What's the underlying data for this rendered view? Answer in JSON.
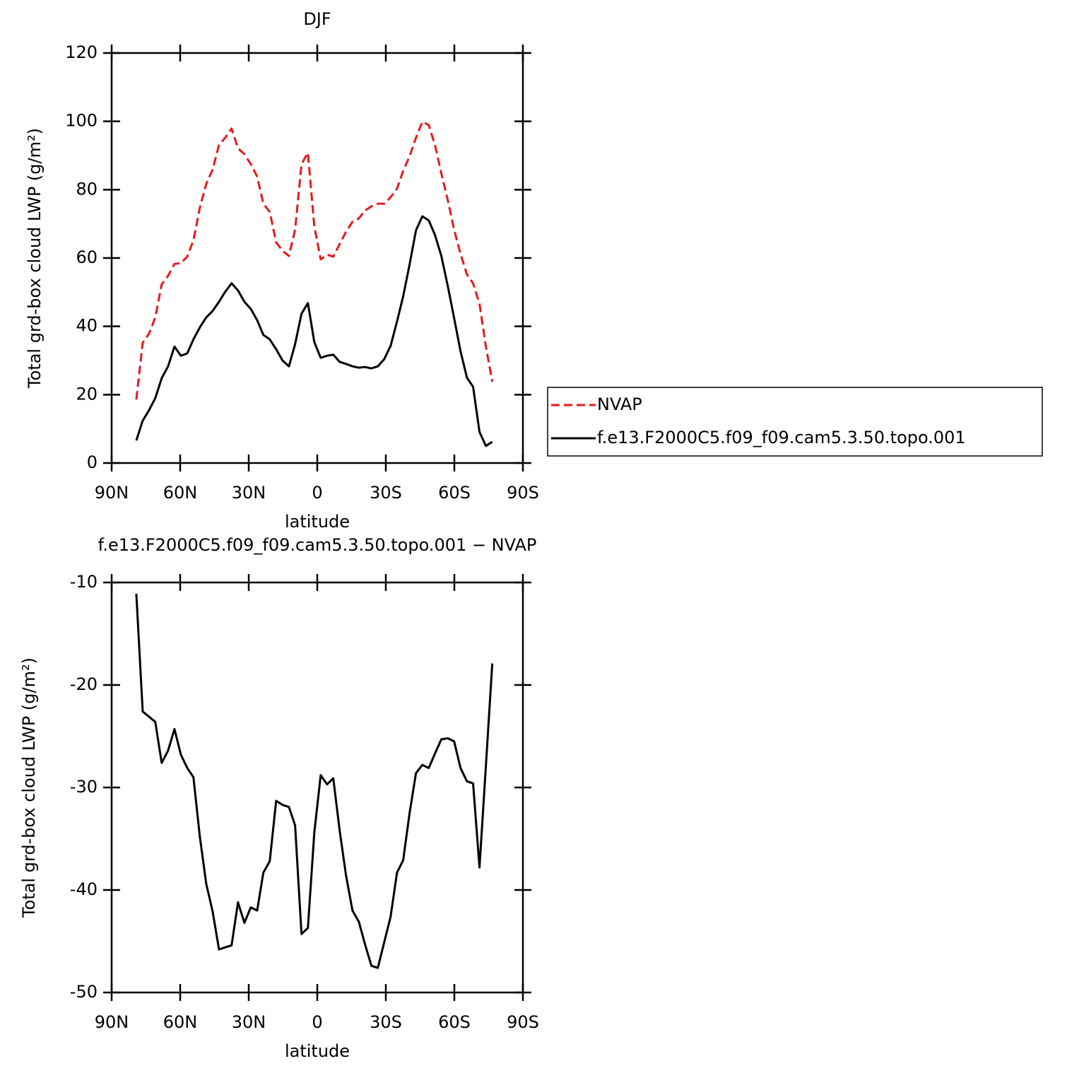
{
  "chart_data": [
    {
      "type": "line",
      "title": "DJF",
      "xlabel": "latitude",
      "ylabel": "Total grd-box cloud LWP (g/m²)",
      "x": [
        79.2,
        76.4,
        73.6,
        70.9,
        68.1,
        65.3,
        62.5,
        59.7,
        56.9,
        54.2,
        51.4,
        48.6,
        45.8,
        43.0,
        40.3,
        37.5,
        34.7,
        31.9,
        29.1,
        26.3,
        23.6,
        20.8,
        18.0,
        15.2,
        12.4,
        9.7,
        6.9,
        4.1,
        1.3,
        -1.5,
        -4.3,
        -7.0,
        -9.8,
        -12.6,
        -15.4,
        -18.2,
        -20.9,
        -23.7,
        -26.5,
        -29.3,
        -32.1,
        -34.9,
        -37.6,
        -40.4,
        -43.2,
        -46.0,
        -48.8,
        -51.5,
        -54.3,
        -57.1,
        -59.9,
        -62.7,
        -65.5,
        -68.2,
        -71.0,
        -73.8,
        -76.6
      ],
      "series": [
        {
          "name": "NVAP",
          "color": "#e41a1c",
          "linestyle": "dashed",
          "values": [
            18.6,
            35.2,
            37.9,
            42.6,
            52.3,
            54.8,
            58.3,
            58.5,
            60.4,
            65.2,
            74.7,
            81.7,
            85.9,
            93.1,
            95.2,
            97.9,
            92.1,
            90.4,
            87.5,
            83.8,
            75.9,
            73.5,
            64.6,
            62.1,
            60.6,
            68.3,
            87.5,
            90.8,
            69.3,
            59.6,
            61.0,
            60.4,
            64.1,
            67.7,
            70.6,
            71.6,
            73.9,
            75.1,
            75.9,
            75.9,
            77.8,
            80.3,
            85.5,
            89.8,
            95.2,
            99.9,
            98.9,
            93.1,
            84.8,
            77.0,
            68.3,
            61.2,
            55.2,
            52.6,
            46.6,
            34.1,
            23.8
          ]
        },
        {
          "name": "f.e13.F2000C5.f09_f09.cam5.3.50.topo.001",
          "color": "#000000",
          "linestyle": "solid",
          "values": [
            6.6,
            12.4,
            15.5,
            19.0,
            24.8,
            28.3,
            34.1,
            31.4,
            32.1,
            36.2,
            39.7,
            42.6,
            44.5,
            47.2,
            50.1,
            52.6,
            50.5,
            47.2,
            45.1,
            41.8,
            37.5,
            36.2,
            33.3,
            30.0,
            28.3,
            34.8,
            43.7,
            46.8,
            35.4,
            30.8,
            31.4,
            31.7,
            29.6,
            29.0,
            28.3,
            27.9,
            28.1,
            27.7,
            28.3,
            30.4,
            34.3,
            41.4,
            48.8,
            58.1,
            68.1,
            72.2,
            71.0,
            66.8,
            60.6,
            51.9,
            42.4,
            32.7,
            25.0,
            22.3,
            9.1,
            5.0,
            6.2
          ]
        }
      ],
      "xlim": [
        90,
        -90
      ],
      "xticks": [
        {
          "value": 90,
          "label": "90N"
        },
        {
          "value": 60,
          "label": "60N"
        },
        {
          "value": 30,
          "label": "30N"
        },
        0,
        {
          "value": -30,
          "label": "30S"
        },
        {
          "value": -60,
          "label": "60S"
        },
        {
          "value": -90,
          "label": "90S"
        }
      ],
      "ylim": [
        0,
        120
      ],
      "yticks": [
        0,
        20,
        40,
        60,
        80,
        100,
        120
      ],
      "legend": "right"
    },
    {
      "type": "line",
      "title": "f.e13.F2000C5.f09_f09.cam5.3.50.topo.001  −  NVAP",
      "xlabel": "latitude",
      "ylabel": "Total grd-box cloud LWP (g/m²)",
      "x": [
        79.2,
        76.4,
        73.6,
        70.9,
        68.1,
        65.3,
        62.5,
        59.7,
        56.9,
        54.2,
        51.4,
        48.6,
        45.8,
        43.0,
        40.3,
        37.5,
        34.7,
        31.9,
        29.1,
        26.3,
        23.6,
        20.8,
        18.0,
        15.2,
        12.4,
        9.7,
        6.9,
        4.1,
        1.3,
        -1.5,
        -4.3,
        -7.0,
        -9.8,
        -12.6,
        -15.4,
        -18.2,
        -20.9,
        -23.7,
        -26.5,
        -29.3,
        -32.1,
        -34.9,
        -37.6,
        -40.4,
        -43.2,
        -46.0,
        -48.8,
        -51.5,
        -54.3,
        -57.1,
        -59.9,
        -62.7,
        -65.5,
        -68.2,
        -71.0,
        -73.8,
        -76.6
      ],
      "series": [
        {
          "color": "#000000",
          "linestyle": "solid",
          "values": [
            -11.1,
            -22.6,
            -23.1,
            -23.6,
            -27.6,
            -26.4,
            -24.3,
            -26.8,
            -28.1,
            -29.0,
            -34.8,
            -39.4,
            -42.1,
            -45.8,
            -45.6,
            -45.4,
            -41.2,
            -43.2,
            -41.7,
            -42.0,
            -38.3,
            -37.2,
            -31.3,
            -31.7,
            -31.9,
            -33.7,
            -44.3,
            -43.7,
            -34.4,
            -28.8,
            -29.7,
            -29.1,
            -34.2,
            -38.6,
            -42.0,
            -43.1,
            -45.3,
            -47.4,
            -47.6,
            -45.1,
            -42.6,
            -38.3,
            -37.1,
            -32.5,
            -28.6,
            -27.8,
            -28.1,
            -26.7,
            -25.3,
            -25.2,
            -25.5,
            -28.1,
            -29.4,
            -29.6,
            -37.8,
            -27.9,
            -17.9
          ]
        }
      ],
      "xlim": [
        90,
        -90
      ],
      "xticks": [
        {
          "value": 90,
          "label": "90N"
        },
        {
          "value": 60,
          "label": "60N"
        },
        {
          "value": 30,
          "label": "30N"
        },
        0,
        {
          "value": -30,
          "label": "30S"
        },
        {
          "value": -60,
          "label": "60S"
        },
        {
          "value": -90,
          "label": "90S"
        }
      ],
      "ylim": [
        -50,
        -10
      ],
      "yticks": [
        -50,
        -40,
        -30,
        -20,
        -10
      ]
    }
  ]
}
